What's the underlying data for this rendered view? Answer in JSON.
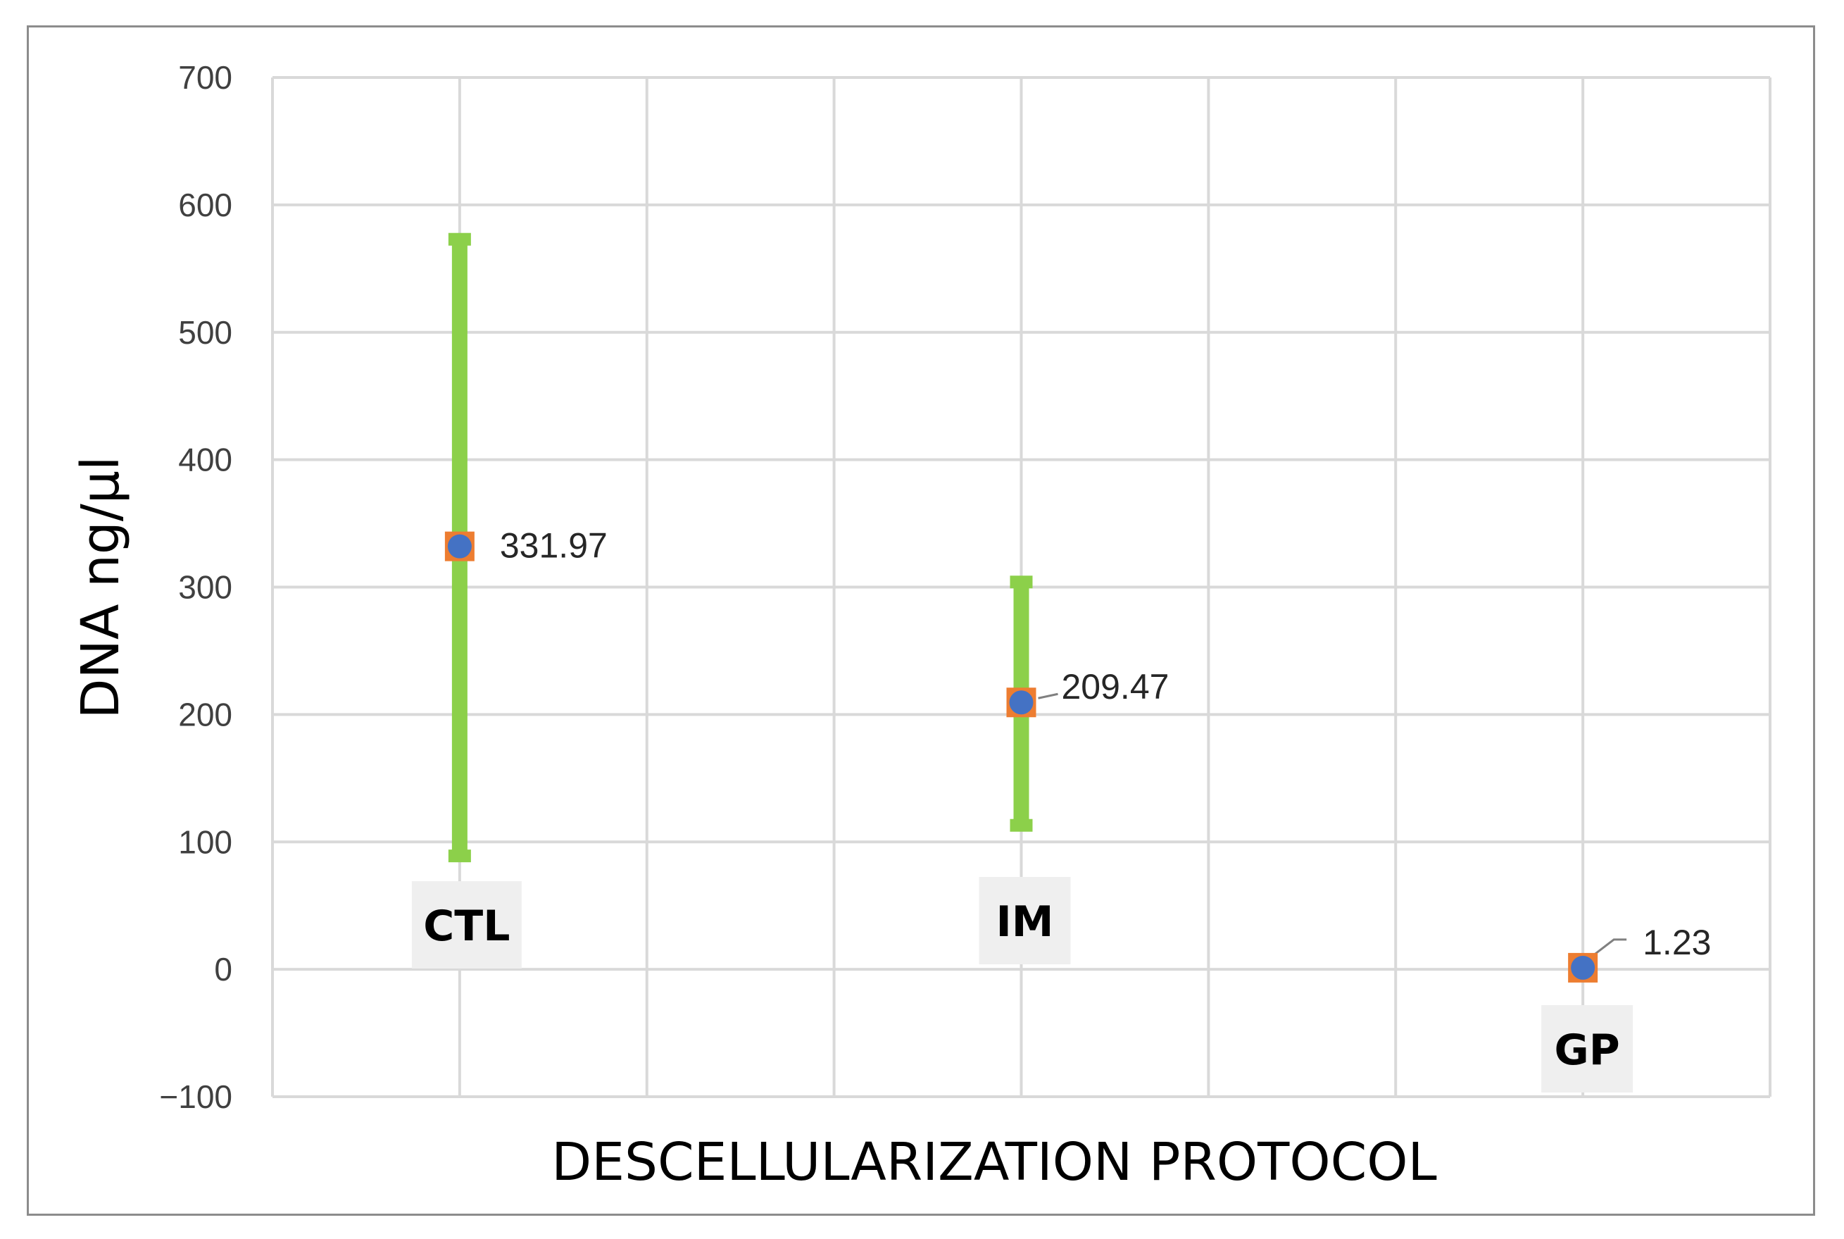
{
  "chart_data": {
    "type": "scatter",
    "title": "",
    "xlabel": "DESCELLULARIZATION PROTOCOL",
    "ylabel": "DNA ng/µl",
    "ylim": [
      -100,
      700
    ],
    "yticks": [
      -100,
      0,
      100,
      200,
      300,
      400,
      500,
      600,
      700
    ],
    "grid": true,
    "legend": "none",
    "categories": [
      "CTL",
      "IM",
      "GP"
    ],
    "series": [
      {
        "values": [
          331.97,
          209.47,
          1.23
        ],
        "error_low": [
          89,
          113,
          1.23
        ],
        "error_high": [
          573,
          304,
          1.23
        ],
        "labels": [
          "331.97",
          "209.47",
          "1.23"
        ]
      }
    ],
    "colors": {
      "error_bar": "#8cd04a",
      "marker_fill": "#4472c4",
      "marker_border": "#ed7d31",
      "grid": "#d9d9d9",
      "frame": "#8c8c8c",
      "category_label_bg": "#efefef"
    }
  }
}
